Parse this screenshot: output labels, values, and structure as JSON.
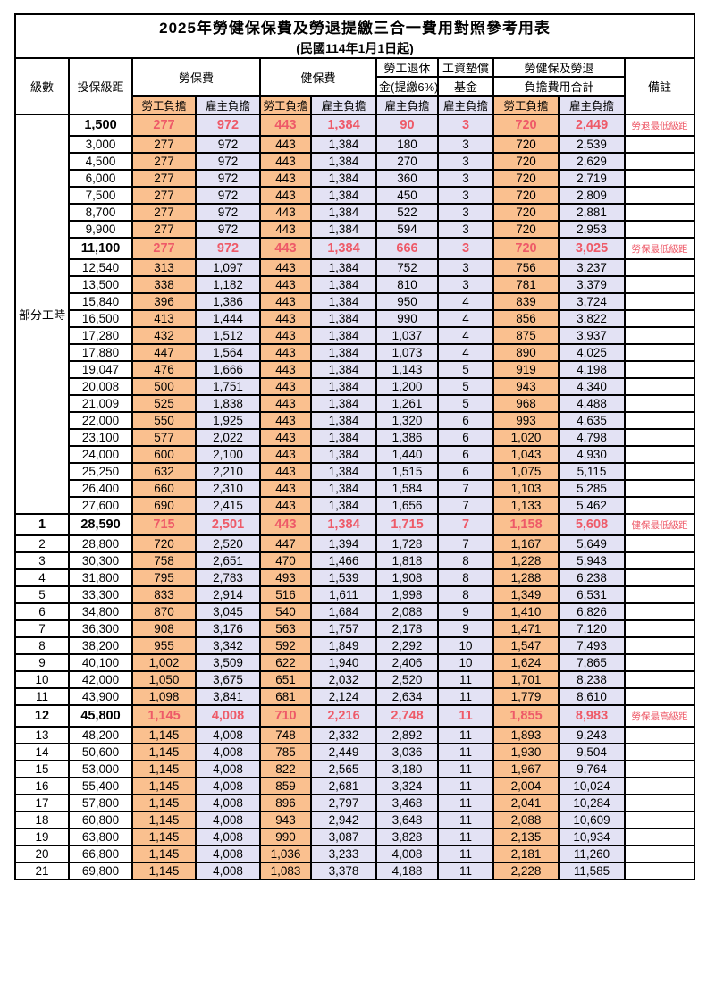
{
  "title": "2025年勞健保保費及勞退提繳三合一費用對照參考用表",
  "subtitle": "(民國114年1月1日起)",
  "colors": {
    "employee_bg": "#fac08f",
    "employer_bg": "#e3e2f4",
    "highlight_red": "#ee5a68",
    "grid": "#000000"
  },
  "header": {
    "level": "級數",
    "bracket": "投保級距",
    "labor_insurance": "勞保費",
    "health_insurance": "健保費",
    "pension_line1": "勞工退休",
    "pension_line2": "金(提繳6%)",
    "wage_fund_line1": "工資墊償",
    "wage_fund_line2": "基金",
    "total_line1": "勞健保及勞退",
    "total_line2": "負擔費用合計",
    "remark": "備註",
    "employee_share": "勞工負擔",
    "employer_share": "雇主負擔"
  },
  "part_time": {
    "label": "部分工時",
    "row_span": 23
  },
  "rows": [
    {
      "level": "",
      "bracket": "1,500",
      "li_emp": "277",
      "li_er": "972",
      "hi_emp": "443",
      "hi_er": "1,384",
      "pension": "90",
      "fund": "3",
      "tot_emp": "720",
      "tot_er": "2,449",
      "remark": "勞退最低級距",
      "milestone": true
    },
    {
      "level": "",
      "bracket": "3,000",
      "li_emp": "277",
      "li_er": "972",
      "hi_emp": "443",
      "hi_er": "1,384",
      "pension": "180",
      "fund": "3",
      "tot_emp": "720",
      "tot_er": "2,539",
      "remark": "",
      "milestone": false
    },
    {
      "level": "",
      "bracket": "4,500",
      "li_emp": "277",
      "li_er": "972",
      "hi_emp": "443",
      "hi_er": "1,384",
      "pension": "270",
      "fund": "3",
      "tot_emp": "720",
      "tot_er": "2,629",
      "remark": "",
      "milestone": false
    },
    {
      "level": "",
      "bracket": "6,000",
      "li_emp": "277",
      "li_er": "972",
      "hi_emp": "443",
      "hi_er": "1,384",
      "pension": "360",
      "fund": "3",
      "tot_emp": "720",
      "tot_er": "2,719",
      "remark": "",
      "milestone": false
    },
    {
      "level": "",
      "bracket": "7,500",
      "li_emp": "277",
      "li_er": "972",
      "hi_emp": "443",
      "hi_er": "1,384",
      "pension": "450",
      "fund": "3",
      "tot_emp": "720",
      "tot_er": "2,809",
      "remark": "",
      "milestone": false
    },
    {
      "level": "",
      "bracket": "8,700",
      "li_emp": "277",
      "li_er": "972",
      "hi_emp": "443",
      "hi_er": "1,384",
      "pension": "522",
      "fund": "3",
      "tot_emp": "720",
      "tot_er": "2,881",
      "remark": "",
      "milestone": false
    },
    {
      "level": "",
      "bracket": "9,900",
      "li_emp": "277",
      "li_er": "972",
      "hi_emp": "443",
      "hi_er": "1,384",
      "pension": "594",
      "fund": "3",
      "tot_emp": "720",
      "tot_er": "2,953",
      "remark": "",
      "milestone": false
    },
    {
      "level": "",
      "bracket": "11,100",
      "li_emp": "277",
      "li_er": "972",
      "hi_emp": "443",
      "hi_er": "1,384",
      "pension": "666",
      "fund": "3",
      "tot_emp": "720",
      "tot_er": "3,025",
      "remark": "勞保最低級距",
      "milestone": true
    },
    {
      "level": "",
      "bracket": "12,540",
      "li_emp": "313",
      "li_er": "1,097",
      "hi_emp": "443",
      "hi_er": "1,384",
      "pension": "752",
      "fund": "3",
      "tot_emp": "756",
      "tot_er": "3,237",
      "remark": "",
      "milestone": false
    },
    {
      "level": "",
      "bracket": "13,500",
      "li_emp": "338",
      "li_er": "1,182",
      "hi_emp": "443",
      "hi_er": "1,384",
      "pension": "810",
      "fund": "3",
      "tot_emp": "781",
      "tot_er": "3,379",
      "remark": "",
      "milestone": false
    },
    {
      "level": "",
      "bracket": "15,840",
      "li_emp": "396",
      "li_er": "1,386",
      "hi_emp": "443",
      "hi_er": "1,384",
      "pension": "950",
      "fund": "4",
      "tot_emp": "839",
      "tot_er": "3,724",
      "remark": "",
      "milestone": false
    },
    {
      "level": "",
      "bracket": "16,500",
      "li_emp": "413",
      "li_er": "1,444",
      "hi_emp": "443",
      "hi_er": "1,384",
      "pension": "990",
      "fund": "4",
      "tot_emp": "856",
      "tot_er": "3,822",
      "remark": "",
      "milestone": false
    },
    {
      "level": "",
      "bracket": "17,280",
      "li_emp": "432",
      "li_er": "1,512",
      "hi_emp": "443",
      "hi_er": "1,384",
      "pension": "1,037",
      "fund": "4",
      "tot_emp": "875",
      "tot_er": "3,937",
      "remark": "",
      "milestone": false
    },
    {
      "level": "",
      "bracket": "17,880",
      "li_emp": "447",
      "li_er": "1,564",
      "hi_emp": "443",
      "hi_er": "1,384",
      "pension": "1,073",
      "fund": "4",
      "tot_emp": "890",
      "tot_er": "4,025",
      "remark": "",
      "milestone": false
    },
    {
      "level": "",
      "bracket": "19,047",
      "li_emp": "476",
      "li_er": "1,666",
      "hi_emp": "443",
      "hi_er": "1,384",
      "pension": "1,143",
      "fund": "5",
      "tot_emp": "919",
      "tot_er": "4,198",
      "remark": "",
      "milestone": false
    },
    {
      "level": "",
      "bracket": "20,008",
      "li_emp": "500",
      "li_er": "1,751",
      "hi_emp": "443",
      "hi_er": "1,384",
      "pension": "1,200",
      "fund": "5",
      "tot_emp": "943",
      "tot_er": "4,340",
      "remark": "",
      "milestone": false
    },
    {
      "level": "",
      "bracket": "21,009",
      "li_emp": "525",
      "li_er": "1,838",
      "hi_emp": "443",
      "hi_er": "1,384",
      "pension": "1,261",
      "fund": "5",
      "tot_emp": "968",
      "tot_er": "4,488",
      "remark": "",
      "milestone": false
    },
    {
      "level": "",
      "bracket": "22,000",
      "li_emp": "550",
      "li_er": "1,925",
      "hi_emp": "443",
      "hi_er": "1,384",
      "pension": "1,320",
      "fund": "6",
      "tot_emp": "993",
      "tot_er": "4,635",
      "remark": "",
      "milestone": false
    },
    {
      "level": "",
      "bracket": "23,100",
      "li_emp": "577",
      "li_er": "2,022",
      "hi_emp": "443",
      "hi_er": "1,384",
      "pension": "1,386",
      "fund": "6",
      "tot_emp": "1,020",
      "tot_er": "4,798",
      "remark": "",
      "milestone": false
    },
    {
      "level": "",
      "bracket": "24,000",
      "li_emp": "600",
      "li_er": "2,100",
      "hi_emp": "443",
      "hi_er": "1,384",
      "pension": "1,440",
      "fund": "6",
      "tot_emp": "1,043",
      "tot_er": "4,930",
      "remark": "",
      "milestone": false
    },
    {
      "level": "",
      "bracket": "25,250",
      "li_emp": "632",
      "li_er": "2,210",
      "hi_emp": "443",
      "hi_er": "1,384",
      "pension": "1,515",
      "fund": "6",
      "tot_emp": "1,075",
      "tot_er": "5,115",
      "remark": "",
      "milestone": false
    },
    {
      "level": "",
      "bracket": "26,400",
      "li_emp": "660",
      "li_er": "2,310",
      "hi_emp": "443",
      "hi_er": "1,384",
      "pension": "1,584",
      "fund": "7",
      "tot_emp": "1,103",
      "tot_er": "5,285",
      "remark": "",
      "milestone": false
    },
    {
      "level": "",
      "bracket": "27,600",
      "li_emp": "690",
      "li_er": "2,415",
      "hi_emp": "443",
      "hi_er": "1,384",
      "pension": "1,656",
      "fund": "7",
      "tot_emp": "1,133",
      "tot_er": "5,462",
      "remark": "",
      "milestone": false
    },
    {
      "level": "1",
      "bracket": "28,590",
      "li_emp": "715",
      "li_er": "2,501",
      "hi_emp": "443",
      "hi_er": "1,384",
      "pension": "1,715",
      "fund": "7",
      "tot_emp": "1,158",
      "tot_er": "5,608",
      "remark": "健保最低級距",
      "milestone": true
    },
    {
      "level": "2",
      "bracket": "28,800",
      "li_emp": "720",
      "li_er": "2,520",
      "hi_emp": "447",
      "hi_er": "1,394",
      "pension": "1,728",
      "fund": "7",
      "tot_emp": "1,167",
      "tot_er": "5,649",
      "remark": "",
      "milestone": false
    },
    {
      "level": "3",
      "bracket": "30,300",
      "li_emp": "758",
      "li_er": "2,651",
      "hi_emp": "470",
      "hi_er": "1,466",
      "pension": "1,818",
      "fund": "8",
      "tot_emp": "1,228",
      "tot_er": "5,943",
      "remark": "",
      "milestone": false
    },
    {
      "level": "4",
      "bracket": "31,800",
      "li_emp": "795",
      "li_er": "2,783",
      "hi_emp": "493",
      "hi_er": "1,539",
      "pension": "1,908",
      "fund": "8",
      "tot_emp": "1,288",
      "tot_er": "6,238",
      "remark": "",
      "milestone": false
    },
    {
      "level": "5",
      "bracket": "33,300",
      "li_emp": "833",
      "li_er": "2,914",
      "hi_emp": "516",
      "hi_er": "1,611",
      "pension": "1,998",
      "fund": "8",
      "tot_emp": "1,349",
      "tot_er": "6,531",
      "remark": "",
      "milestone": false
    },
    {
      "level": "6",
      "bracket": "34,800",
      "li_emp": "870",
      "li_er": "3,045",
      "hi_emp": "540",
      "hi_er": "1,684",
      "pension": "2,088",
      "fund": "9",
      "tot_emp": "1,410",
      "tot_er": "6,826",
      "remark": "",
      "milestone": false
    },
    {
      "level": "7",
      "bracket": "36,300",
      "li_emp": "908",
      "li_er": "3,176",
      "hi_emp": "563",
      "hi_er": "1,757",
      "pension": "2,178",
      "fund": "9",
      "tot_emp": "1,471",
      "tot_er": "7,120",
      "remark": "",
      "milestone": false
    },
    {
      "level": "8",
      "bracket": "38,200",
      "li_emp": "955",
      "li_er": "3,342",
      "hi_emp": "592",
      "hi_er": "1,849",
      "pension": "2,292",
      "fund": "10",
      "tot_emp": "1,547",
      "tot_er": "7,493",
      "remark": "",
      "milestone": false
    },
    {
      "level": "9",
      "bracket": "40,100",
      "li_emp": "1,002",
      "li_er": "3,509",
      "hi_emp": "622",
      "hi_er": "1,940",
      "pension": "2,406",
      "fund": "10",
      "tot_emp": "1,624",
      "tot_er": "7,865",
      "remark": "",
      "milestone": false
    },
    {
      "level": "10",
      "bracket": "42,000",
      "li_emp": "1,050",
      "li_er": "3,675",
      "hi_emp": "651",
      "hi_er": "2,032",
      "pension": "2,520",
      "fund": "11",
      "tot_emp": "1,701",
      "tot_er": "8,238",
      "remark": "",
      "milestone": false
    },
    {
      "level": "11",
      "bracket": "43,900",
      "li_emp": "1,098",
      "li_er": "3,841",
      "hi_emp": "681",
      "hi_er": "2,124",
      "pension": "2,634",
      "fund": "11",
      "tot_emp": "1,779",
      "tot_er": "8,610",
      "remark": "",
      "milestone": false
    },
    {
      "level": "12",
      "bracket": "45,800",
      "li_emp": "1,145",
      "li_er": "4,008",
      "hi_emp": "710",
      "hi_er": "2,216",
      "pension": "2,748",
      "fund": "11",
      "tot_emp": "1,855",
      "tot_er": "8,983",
      "remark": "勞保最高級距",
      "milestone": true
    },
    {
      "level": "13",
      "bracket": "48,200",
      "li_emp": "1,145",
      "li_er": "4,008",
      "hi_emp": "748",
      "hi_er": "2,332",
      "pension": "2,892",
      "fund": "11",
      "tot_emp": "1,893",
      "tot_er": "9,243",
      "remark": "",
      "milestone": false
    },
    {
      "level": "14",
      "bracket": "50,600",
      "li_emp": "1,145",
      "li_er": "4,008",
      "hi_emp": "785",
      "hi_er": "2,449",
      "pension": "3,036",
      "fund": "11",
      "tot_emp": "1,930",
      "tot_er": "9,504",
      "remark": "",
      "milestone": false
    },
    {
      "level": "15",
      "bracket": "53,000",
      "li_emp": "1,145",
      "li_er": "4,008",
      "hi_emp": "822",
      "hi_er": "2,565",
      "pension": "3,180",
      "fund": "11",
      "tot_emp": "1,967",
      "tot_er": "9,764",
      "remark": "",
      "milestone": false
    },
    {
      "level": "16",
      "bracket": "55,400",
      "li_emp": "1,145",
      "li_er": "4,008",
      "hi_emp": "859",
      "hi_er": "2,681",
      "pension": "3,324",
      "fund": "11",
      "tot_emp": "2,004",
      "tot_er": "10,024",
      "remark": "",
      "milestone": false
    },
    {
      "level": "17",
      "bracket": "57,800",
      "li_emp": "1,145",
      "li_er": "4,008",
      "hi_emp": "896",
      "hi_er": "2,797",
      "pension": "3,468",
      "fund": "11",
      "tot_emp": "2,041",
      "tot_er": "10,284",
      "remark": "",
      "milestone": false
    },
    {
      "level": "18",
      "bracket": "60,800",
      "li_emp": "1,145",
      "li_er": "4,008",
      "hi_emp": "943",
      "hi_er": "2,942",
      "pension": "3,648",
      "fund": "11",
      "tot_emp": "2,088",
      "tot_er": "10,609",
      "remark": "",
      "milestone": false
    },
    {
      "level": "19",
      "bracket": "63,800",
      "li_emp": "1,145",
      "li_er": "4,008",
      "hi_emp": "990",
      "hi_er": "3,087",
      "pension": "3,828",
      "fund": "11",
      "tot_emp": "2,135",
      "tot_er": "10,934",
      "remark": "",
      "milestone": false
    },
    {
      "level": "20",
      "bracket": "66,800",
      "li_emp": "1,145",
      "li_er": "4,008",
      "hi_emp": "1,036",
      "hi_er": "3,233",
      "pension": "4,008",
      "fund": "11",
      "tot_emp": "2,181",
      "tot_er": "11,260",
      "remark": "",
      "milestone": false
    },
    {
      "level": "21",
      "bracket": "69,800",
      "li_emp": "1,145",
      "li_er": "4,008",
      "hi_emp": "1,083",
      "hi_er": "3,378",
      "pension": "4,188",
      "fund": "11",
      "tot_emp": "2,228",
      "tot_er": "11,585",
      "remark": "",
      "milestone": false
    }
  ]
}
